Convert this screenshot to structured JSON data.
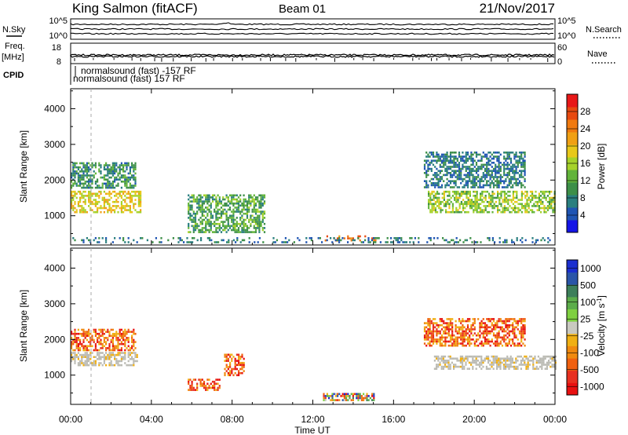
{
  "header": {
    "station": "King Salmon (fitACF)",
    "beam": "Beam 01",
    "date": "21/Nov/2017"
  },
  "time_axis": {
    "label": "Time UT",
    "tick_labels": [
      "00:00",
      "04:00",
      "08:00",
      "12:00",
      "16:00",
      "20:00",
      "00:00"
    ],
    "range_hours": [
      0,
      24
    ]
  },
  "noise_panel": {
    "left_label": "N.Sky",
    "right_label": "N.Search",
    "left_ticks": [
      "10^5",
      "10^0"
    ],
    "right_ticks": [
      "10^5",
      "10^0"
    ]
  },
  "freq_panel": {
    "left_label_1": "Freq.",
    "left_label_2": "[MHz]",
    "right_label": "Nave",
    "left_ticks": [
      "18",
      "8"
    ],
    "right_ticks": [
      "60",
      "0"
    ]
  },
  "cpid_panel": {
    "label": "CPID",
    "program_1": "normalsound (fast) -157 RF",
    "program_2": "normalsound (fast) 157 RF"
  },
  "colors": {
    "power_scale": [
      "#1414e6",
      "#1f55b3",
      "#2a7f7f",
      "#3d8f48",
      "#62b43a",
      "#a6d22a",
      "#e8c81a",
      "#f0a014",
      "#f07a10",
      "#e84a10",
      "#e81818"
    ],
    "velocity_scale": [
      "#1b2fcf",
      "#2a55a8",
      "#3d7f5a",
      "#5cad4a",
      "#7fd040",
      "#c9c9c0",
      "#f0b014",
      "#f08a10",
      "#f06010",
      "#e83020",
      "#e81010"
    ],
    "ground_scatter": "#bbbbb4"
  },
  "chart_data": [
    {
      "type": "heatmap",
      "panel": "power",
      "ylabel": "Slant Range [km]",
      "yticks": [
        1000,
        2000,
        3000,
        4000
      ],
      "ylim": [
        180,
        4560
      ],
      "xlim_hours": [
        0,
        24
      ],
      "colorbar": {
        "label": "Power [dB]",
        "ticks": [
          "4",
          "8",
          "12",
          "16",
          "20",
          "24",
          "28"
        ],
        "range": [
          0,
          30
        ]
      },
      "regions": [
        {
          "t0": 0.0,
          "t1": 3.5,
          "r0": 1100,
          "r1": 1700,
          "val": 18
        },
        {
          "t0": 0.0,
          "t1": 3.2,
          "r0": 1800,
          "r1": 2500,
          "val": 8
        },
        {
          "t0": 5.8,
          "t1": 9.6,
          "r0": 550,
          "r1": 1600,
          "val": 10
        },
        {
          "t0": 12.5,
          "t1": 15.2,
          "r0": 300,
          "r1": 450,
          "val": 24
        },
        {
          "t0": 17.7,
          "t1": 24.0,
          "r0": 1100,
          "r1": 1700,
          "val": 14
        },
        {
          "t0": 17.5,
          "t1": 22.5,
          "r0": 1800,
          "r1": 2800,
          "val": 6
        },
        {
          "t0": 0.0,
          "t1": 24.0,
          "r0": 250,
          "r1": 400,
          "val": 6
        }
      ]
    },
    {
      "type": "heatmap",
      "panel": "velocity",
      "ylabel": "Slant Range [km]",
      "yticks": [
        1000,
        2000,
        3000,
        4000
      ],
      "ylim": [
        180,
        4560
      ],
      "xlim_hours": [
        0,
        24
      ],
      "colorbar": {
        "label": "Velocity [m s^-1]",
        "ticks": [
          "1000",
          "500",
          "100",
          "25",
          "-25",
          "-100",
          "-500",
          "-1000"
        ]
      },
      "regions": [
        {
          "t0": 0.0,
          "t1": 3.3,
          "r0": 1250,
          "r1": 1650,
          "val": "ground"
        },
        {
          "t0": 0.0,
          "t1": 3.2,
          "r0": 1700,
          "r1": 2300,
          "val": "neg"
        },
        {
          "t0": 5.8,
          "t1": 7.4,
          "r0": 600,
          "r1": 900,
          "val": "neg"
        },
        {
          "t0": 7.6,
          "t1": 8.6,
          "r0": 1000,
          "r1": 1600,
          "val": "neg"
        },
        {
          "t0": 12.5,
          "t1": 15.0,
          "r0": 300,
          "r1": 500,
          "val": "mixed"
        },
        {
          "t0": 18.0,
          "t1": 24.0,
          "r0": 1150,
          "r1": 1550,
          "val": "ground"
        },
        {
          "t0": 17.5,
          "t1": 22.5,
          "r0": 1800,
          "r1": 2600,
          "val": "neg"
        }
      ]
    }
  ]
}
